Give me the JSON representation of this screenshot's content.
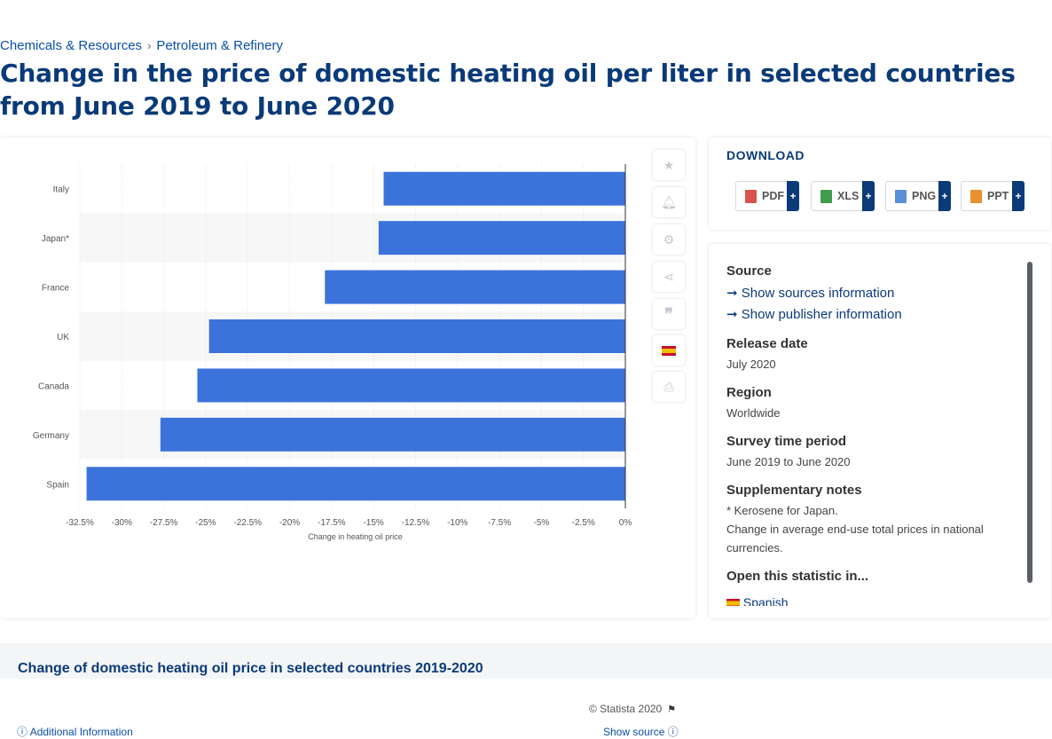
{
  "breadcrumb": {
    "item1": "Chemicals & Resources",
    "separator": "›",
    "item2": "Petroleum & Refinery"
  },
  "page_title": "Change in the price of domestic heating oil per liter in selected countries from June 2019 to June 2020",
  "chart_data": {
    "type": "bar",
    "orientation": "horizontal",
    "categories": [
      "Italy",
      "Japan*",
      "France",
      "UK",
      "Canada",
      "Germany",
      "Spain"
    ],
    "values": [
      -14.4,
      -14.7,
      -17.9,
      -24.8,
      -25.5,
      -27.7,
      -32.1
    ],
    "unit": "%",
    "xlabel": "Change in heating oil price",
    "xlim": [
      -32.5,
      0
    ],
    "xticks": [
      "-32.5%",
      "-30%",
      "-27.5%",
      "-25%",
      "-22.5%",
      "-20%",
      "-17.5%",
      "-15%",
      "-12.5%",
      "-10%",
      "-7.5%",
      "-5%",
      "-2.5%",
      "0%"
    ],
    "bar_color": "#3c73db",
    "grid": true
  },
  "chart_footer": {
    "copyright": "© Statista 2020",
    "additional_info": "Additional Information",
    "show_source": "Show source"
  },
  "tools": [
    "star-icon",
    "bell-icon",
    "gear-icon",
    "share-icon",
    "quote-icon",
    "flag-es-icon",
    "print-icon"
  ],
  "download": {
    "heading": "DOWNLOAD",
    "buttons": [
      {
        "label": "PDF",
        "plus": "+",
        "color": "#d9534f"
      },
      {
        "label": "XLS",
        "plus": "+",
        "color": "#3f9b4e"
      },
      {
        "label": "PNG",
        "plus": "+",
        "color": "#5b8fd6"
      },
      {
        "label": "PPT",
        "plus": "+",
        "color": "#e8912d"
      }
    ]
  },
  "info": {
    "source_h": "Source",
    "show_sources": "Show sources information",
    "show_publisher": "Show publisher information",
    "release_h": "Release date",
    "release": "July 2020",
    "region_h": "Region",
    "region": "Worldwide",
    "survey_h": "Survey time period",
    "survey": "June 2019 to June 2020",
    "notes_h": "Supplementary notes",
    "note1": "* Kerosene for Japan.",
    "note2": "Change in average end-use total prices in national currencies.",
    "open_h": "Open this statistic in...",
    "open_lang": "Spanish"
  },
  "bottom_title": "Change of domestic heating oil price in selected countries 2019-2020"
}
